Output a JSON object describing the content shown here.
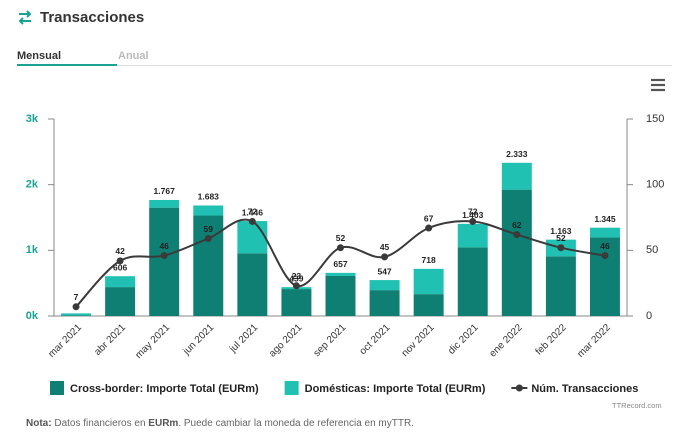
{
  "header": {
    "title": "Transacciones"
  },
  "tabs": [
    "Mensual",
    "Anual"
  ],
  "chart_data": {
    "type": "bar",
    "categories": [
      "mar 2021",
      "abr 2021",
      "may 2021",
      "jun 2021",
      "jul 2021",
      "ago 2021",
      "sep 2021",
      "oct 2021",
      "nov 2021",
      "dic 2021",
      "ene 2022",
      "feb 2022",
      "mar 2022"
    ],
    "series": [
      {
        "name": "Cross-border: Importe Total (EURm)",
        "color": "#0f7f73",
        "values": [
          10,
          440,
          1650,
          1530,
          955,
          410,
          610,
          394,
          333,
          1045,
          1924,
          909,
          1197
        ]
      },
      {
        "name": "Domésticas: Importe Total (EURm)",
        "color": "#20c1b2",
        "values": [
          30,
          166,
          117,
          153,
          491,
          29,
          47,
          153,
          385,
          358,
          409,
          254,
          148
        ]
      },
      {
        "name": "Núm. Transacciones",
        "color": "#3a3a3a",
        "type": "line",
        "axis": "y2",
        "values": [
          7,
          42,
          46,
          59,
          72,
          23,
          52,
          45,
          67,
          72,
          62,
          52,
          46
        ]
      }
    ],
    "total_labels": [
      null,
      "606",
      "1.767",
      "1.683",
      "1.446",
      "439",
      "657",
      "547",
      "718",
      "1.403",
      "2.333",
      "1.163",
      "1.345"
    ],
    "ylim": [
      0,
      3000
    ],
    "yticks": [
      {
        "value": 0,
        "label": "0k"
      },
      {
        "value": 1000,
        "label": "1k"
      },
      {
        "value": 2000,
        "label": "2k"
      },
      {
        "value": 3000,
        "label": "3k"
      }
    ],
    "y2lim": [
      0,
      150
    ],
    "y2ticks": [
      0,
      50,
      100,
      150
    ],
    "legend": "bottom"
  },
  "credit": "TTRecord.com",
  "note": {
    "label": "Nota:",
    "text1": "Datos financieros en",
    "unit": "EURm",
    "text2": ". Puede cambiar la moneda de referencia en myTTR."
  }
}
